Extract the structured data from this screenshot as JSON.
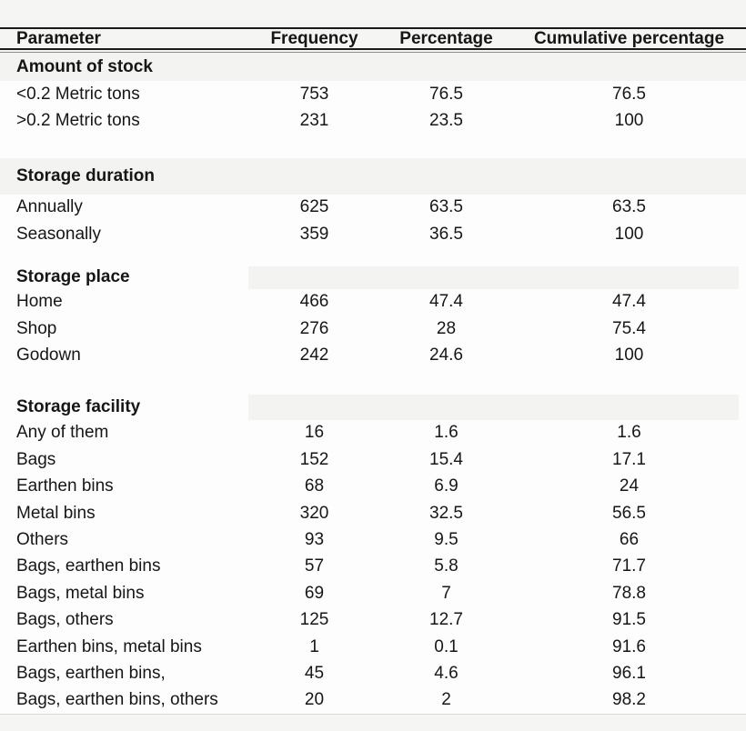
{
  "colors": {
    "page_bg": "#f5f5f3",
    "row_bg": "#fdfdfd",
    "band_bg": "#f3f3f1",
    "text": "#161616",
    "rule_dark": "#1b1b1b",
    "rule_mid": "#8f8f8f",
    "rule_light": "#d9d9d9"
  },
  "table": {
    "headers": [
      "Parameter",
      "Frequency",
      "Percentage",
      "Cumulative percentage"
    ],
    "sections": [
      {
        "title": "Amount of stock",
        "band_style": "full",
        "rows": [
          [
            "<0.2 Metric tons",
            "753",
            "76.5",
            "76.5"
          ],
          [
            ">0.2 Metric tons",
            "231",
            "23.5",
            "100"
          ]
        ]
      },
      {
        "title": "Storage duration",
        "band_style": "full",
        "rows": [
          [
            "Annually",
            "625",
            "63.5",
            "63.5"
          ],
          [
            "Seasonally",
            "359",
            "36.5",
            "100"
          ]
        ]
      },
      {
        "title": "Storage place",
        "band_style": "partial",
        "rows": [
          [
            "Home",
            "466",
            "47.4",
            "47.4"
          ],
          [
            "Shop",
            "276",
            "28",
            "75.4"
          ],
          [
            "Godown",
            "242",
            "24.6",
            "100"
          ]
        ]
      },
      {
        "title": "Storage facility",
        "band_style": "partial",
        "rows": [
          [
            "Any of them",
            "16",
            "1.6",
            "1.6"
          ],
          [
            "Bags",
            "152",
            "15.4",
            "17.1"
          ],
          [
            "Earthen bins",
            "68",
            "6.9",
            "24"
          ],
          [
            "Metal bins",
            "320",
            "32.5",
            "56.5"
          ],
          [
            "Others",
            "93",
            "9.5",
            "66"
          ],
          [
            "Bags, earthen bins",
            "57",
            "5.8",
            "71.7"
          ],
          [
            "Bags, metal bins",
            "69",
            "7",
            "78.8"
          ],
          [
            "Bags, others",
            "125",
            "12.7",
            "91.5"
          ],
          [
            "Earthen bins, metal bins",
            "1",
            "0.1",
            "91.6"
          ],
          [
            "Bags, earthen bins,",
            "45",
            "4.6",
            "96.1"
          ],
          [
            "Bags, earthen bins, others",
            "20",
            "2",
            "98.2"
          ]
        ]
      }
    ]
  },
  "chart_data": {
    "type": "table",
    "title": "",
    "columns": [
      "Parameter",
      "Frequency",
      "Percentage",
      "Cumulative percentage"
    ],
    "groups": [
      {
        "group": "Amount of stock",
        "rows": [
          {
            "parameter": "<0.2 Metric tons",
            "frequency": 753,
            "percentage": 76.5,
            "cumulative_percentage": 76.5
          },
          {
            "parameter": ">0.2 Metric tons",
            "frequency": 231,
            "percentage": 23.5,
            "cumulative_percentage": 100
          }
        ]
      },
      {
        "group": "Storage duration",
        "rows": [
          {
            "parameter": "Annually",
            "frequency": 625,
            "percentage": 63.5,
            "cumulative_percentage": 63.5
          },
          {
            "parameter": "Seasonally",
            "frequency": 359,
            "percentage": 36.5,
            "cumulative_percentage": 100
          }
        ]
      },
      {
        "group": "Storage place",
        "rows": [
          {
            "parameter": "Home",
            "frequency": 466,
            "percentage": 47.4,
            "cumulative_percentage": 47.4
          },
          {
            "parameter": "Shop",
            "frequency": 276,
            "percentage": 28,
            "cumulative_percentage": 75.4
          },
          {
            "parameter": "Godown",
            "frequency": 242,
            "percentage": 24.6,
            "cumulative_percentage": 100
          }
        ]
      },
      {
        "group": "Storage facility",
        "rows": [
          {
            "parameter": "Any of them",
            "frequency": 16,
            "percentage": 1.6,
            "cumulative_percentage": 1.6
          },
          {
            "parameter": "Bags",
            "frequency": 152,
            "percentage": 15.4,
            "cumulative_percentage": 17.1
          },
          {
            "parameter": "Earthen bins",
            "frequency": 68,
            "percentage": 6.9,
            "cumulative_percentage": 24
          },
          {
            "parameter": "Metal bins",
            "frequency": 320,
            "percentage": 32.5,
            "cumulative_percentage": 56.5
          },
          {
            "parameter": "Others",
            "frequency": 93,
            "percentage": 9.5,
            "cumulative_percentage": 66
          },
          {
            "parameter": "Bags, earthen bins",
            "frequency": 57,
            "percentage": 5.8,
            "cumulative_percentage": 71.7
          },
          {
            "parameter": "Bags, metal bins",
            "frequency": 69,
            "percentage": 7,
            "cumulative_percentage": 78.8
          },
          {
            "parameter": "Bags, others",
            "frequency": 125,
            "percentage": 12.7,
            "cumulative_percentage": 91.5
          },
          {
            "parameter": "Earthen bins, metal bins",
            "frequency": 1,
            "percentage": 0.1,
            "cumulative_percentage": 91.6
          },
          {
            "parameter": "Bags, earthen bins,",
            "frequency": 45,
            "percentage": 4.6,
            "cumulative_percentage": 96.1
          },
          {
            "parameter": "Bags, earthen bins, others",
            "frequency": 20,
            "percentage": 2,
            "cumulative_percentage": 98.2
          }
        ]
      }
    ]
  }
}
